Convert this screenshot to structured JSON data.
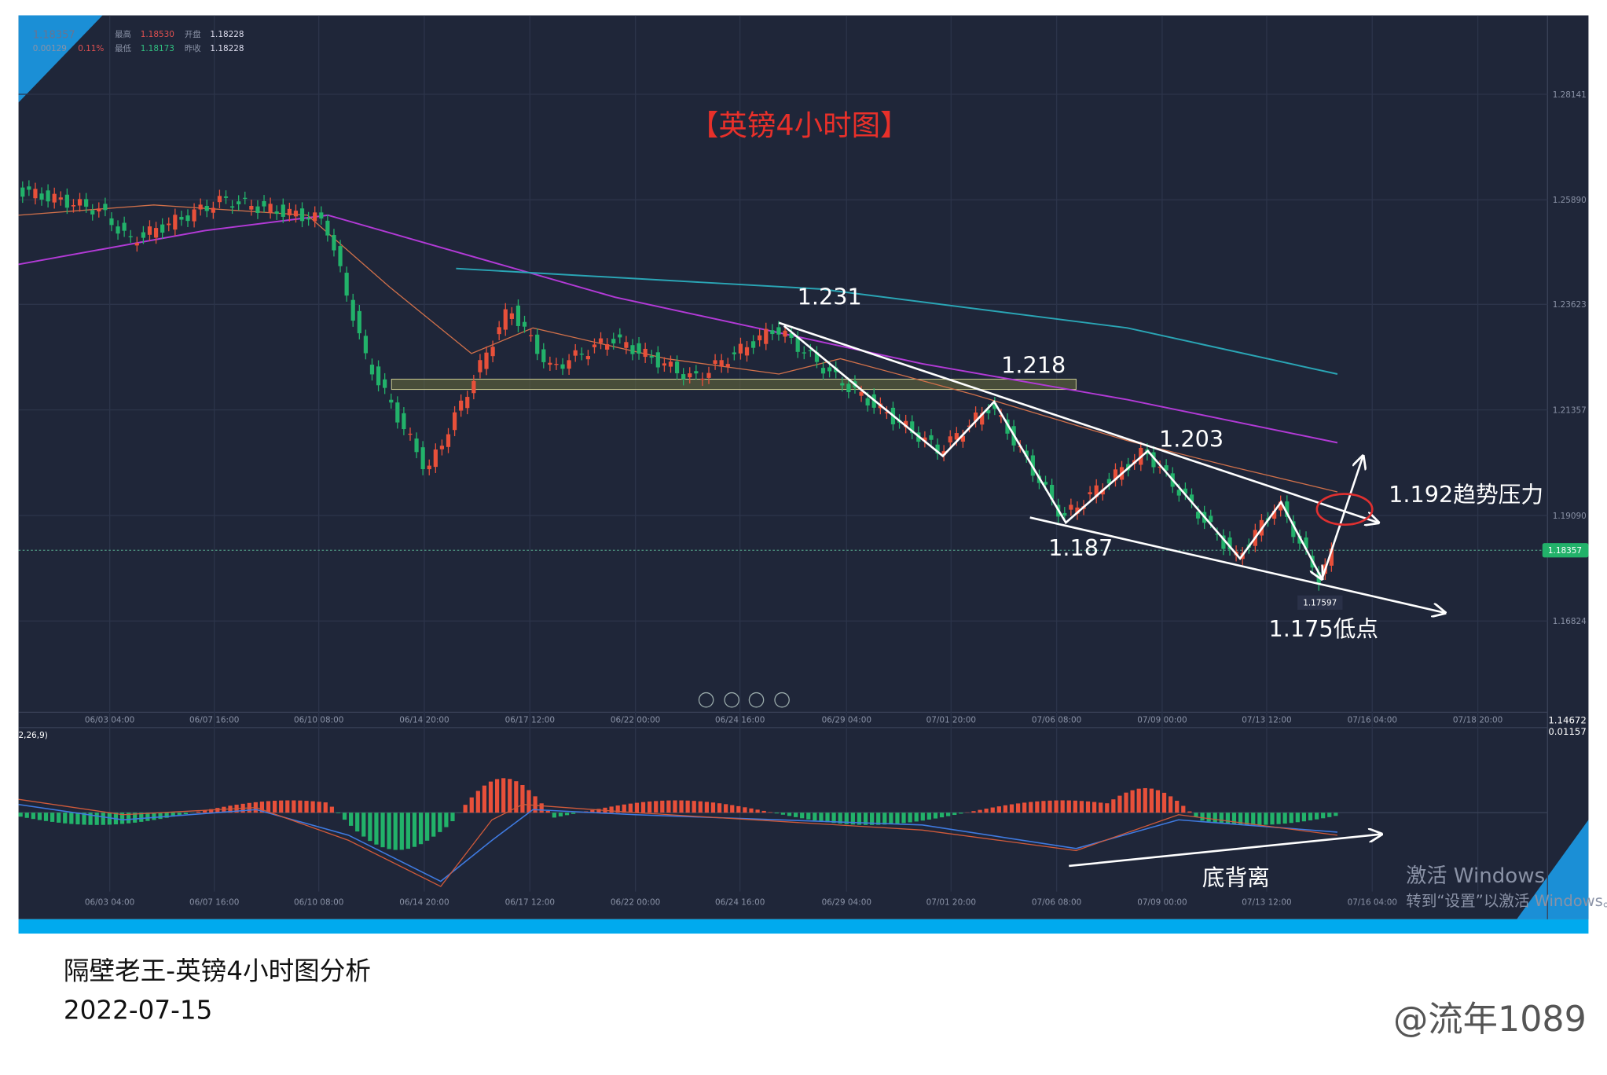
{
  "header": {
    "price": "1.18357",
    "change": "0.00129",
    "change_pct": "0.11%",
    "high_label": "最高",
    "high": "1.18530",
    "open_label": "开盘",
    "open": "1.18228",
    "low_label": "最低",
    "low": "1.18173",
    "prev_close_label": "昨收",
    "prev_close": "1.18228"
  },
  "chart": {
    "title": "【英镑4小时图】",
    "current_price": "1.18357",
    "y_axis_labels": [
      "1.28141",
      "1.25890",
      "1.23623",
      "1.21357",
      "1.19090",
      "1.16824"
    ],
    "bottom_value": "1.14672",
    "x_axis_labels": [
      "06/03 04:00",
      "06/07 16:00",
      "06/10 08:00",
      "06/14 20:00",
      "06/17 12:00",
      "06/22 00:00",
      "06/24 16:00",
      "06/29 04:00",
      "07/01 20:00",
      "07/06 08:00",
      "07/09 00:00",
      "07/13 12:00",
      "07/16 04:00",
      "07/18 20:00"
    ],
    "low_marker": "1.17597"
  },
  "annotations": {
    "high_1": "1.231",
    "level_1": "1.218",
    "high_2": "1.203",
    "low_1": "1.187",
    "pressure": "1.192趋势压力",
    "low_2": "1.175低点",
    "divergence": "底背离"
  },
  "macd": {
    "label": "2,26,9)",
    "top_value": "0.01157",
    "x_axis_labels": [
      "06/03 04:00",
      "06/07 16:00",
      "06/10 08:00",
      "06/14 20:00",
      "06/17 12:00",
      "06/22 00:00",
      "06/24 16:00",
      "06/29 04:00",
      "07/01 20:00",
      "07/06 08:00",
      "07/09 00:00",
      "07/13 12:00",
      "07/16 04:00"
    ]
  },
  "watermark": {
    "line1": "激活 Windows",
    "line2": "转到“设置”以激活 Windows。"
  },
  "footer": {
    "caption": "隔壁老王-英镑4小时图分析",
    "date": "2022-07-15",
    "author": "@流年1089"
  }
}
